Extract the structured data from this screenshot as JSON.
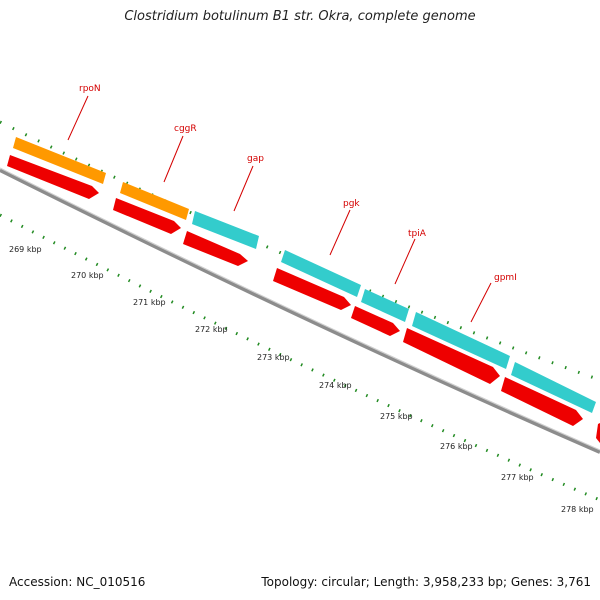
{
  "title": "Clostridium botulinum B1 str. Okra, complete genome",
  "footer": {
    "accession": "Accession: NC_010516",
    "summary": "Topology: circular; Length: 3,958,233 bp; Genes: 3,761"
  },
  "colors": {
    "backbone": "#8c8c8c",
    "cds": "#ee0000",
    "gene_orange": "#ff9900",
    "gene_cyan": "#33cccc",
    "tick_green": "#228b22",
    "label": "#d40000"
  },
  "tick_labels": [
    "269 kbp",
    "270 kbp",
    "271 kbp",
    "272 kbp",
    "273 kbp",
    "274 kbp",
    "275 kbp",
    "276 kbp",
    "277 kbp",
    "278 kbp"
  ],
  "gene_labels": [
    "rpoN",
    "cggR",
    "gap",
    "pgk",
    "tpiA",
    "gpmI"
  ]
}
